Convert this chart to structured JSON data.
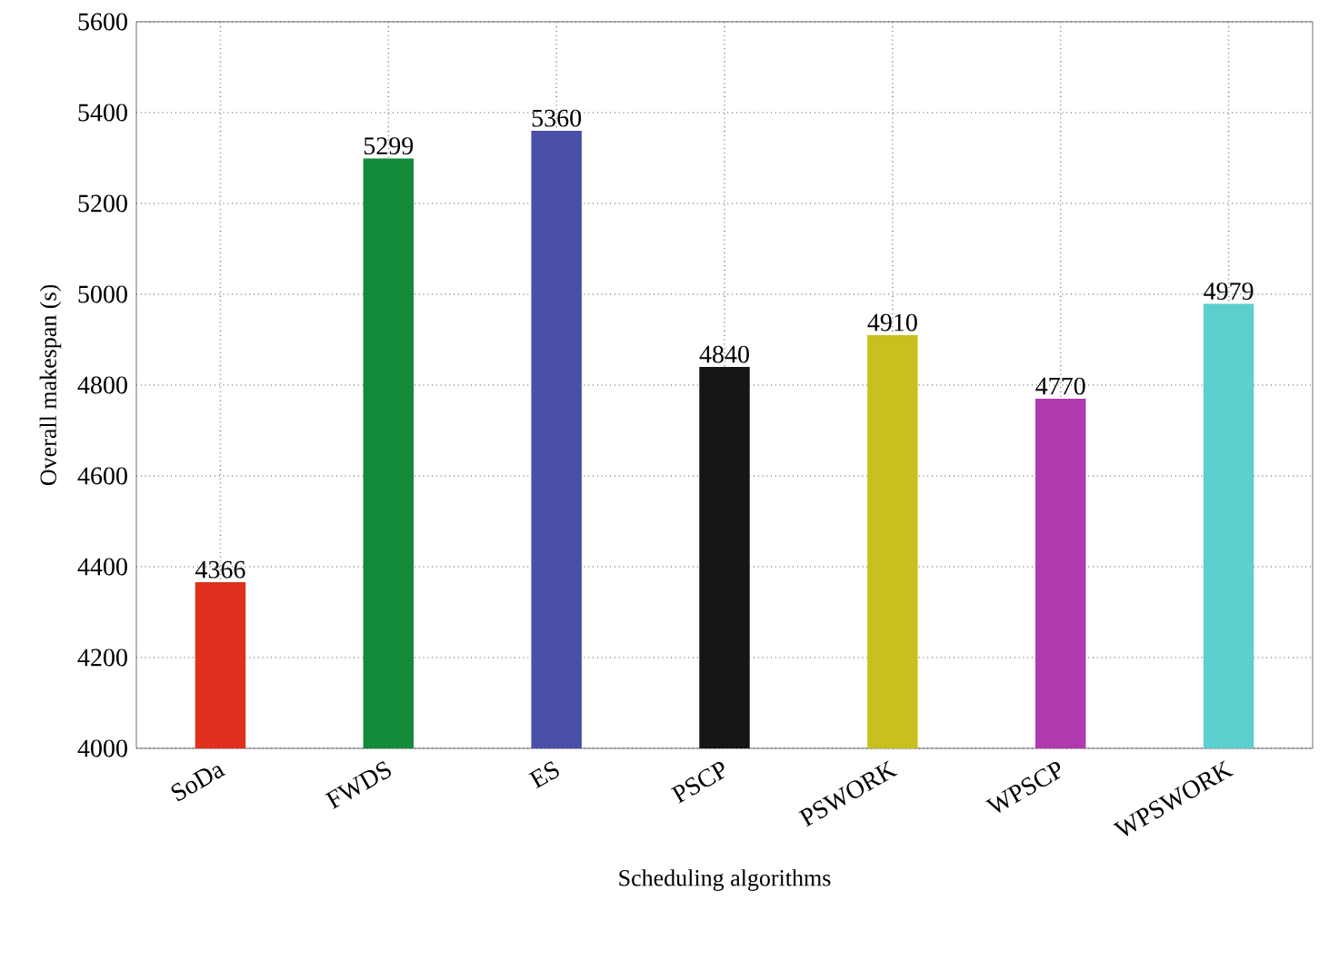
{
  "chart_data": {
    "type": "bar",
    "xlabel": "Scheduling algorithms",
    "ylabel": "Overall makespan (s)",
    "categories": [
      "SoDa",
      "FWDS",
      "ES",
      "PSCP",
      "PSWORK",
      "WPSCP",
      "WPSWORK"
    ],
    "values": [
      4366,
      5299,
      5360,
      4840,
      4910,
      4770,
      4979
    ],
    "colors": [
      "#e0301e",
      "#138a3a",
      "#4a4fa8",
      "#161616",
      "#c8c01c",
      "#b03aad",
      "#5ccfcf"
    ],
    "ylim": [
      4000,
      5600
    ],
    "yticks": [
      4000,
      4200,
      4400,
      4600,
      4800,
      5000,
      5200,
      5400,
      5600
    ],
    "grid": true,
    "data_labels": true
  }
}
